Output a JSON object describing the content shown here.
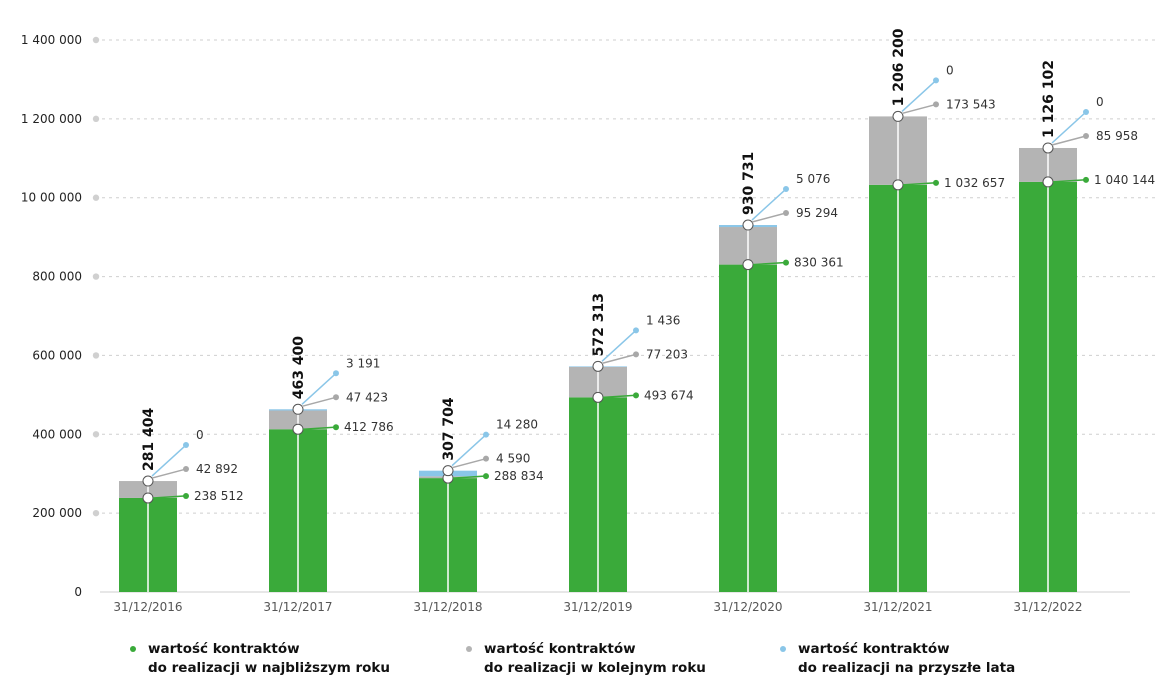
{
  "chart_data": {
    "type": "bar",
    "stacked": true,
    "categories": [
      "31/12/2016",
      "31/12/2017",
      "31/12/2018",
      "31/12/2019",
      "31/12/2020",
      "31/12/2021",
      "31/12/2022"
    ],
    "totals": [
      "281 404",
      "463 400",
      "307 704",
      "572 313",
      "930 731",
      "1 206 200",
      "1 126 102"
    ],
    "series": [
      {
        "name_lines": [
          "wartość kontraktów",
          "do realizacji w najbliższym roku"
        ],
        "color": "#3aaa3a",
        "values": [
          238512,
          412786,
          288834,
          493674,
          830361,
          1032657,
          1040144
        ],
        "labels": [
          "238 512",
          "412 786",
          "288 834",
          "493 674",
          "830 361",
          "1 032 657",
          "1 040 144"
        ]
      },
      {
        "name_lines": [
          "wartość kontraktów",
          "do realizacji w kolejnym roku"
        ],
        "color": "#b4b4b4",
        "values": [
          42892,
          47423,
          4590,
          77203,
          95294,
          173543,
          85958
        ],
        "labels": [
          "42 892",
          "47 423",
          "4 590",
          "77 203",
          "95 294",
          "173 543",
          "85 958"
        ]
      },
      {
        "name_lines": [
          "wartość kontraktów",
          "do realizacji na przyszłe lata"
        ],
        "color": "#8ac6e8",
        "values": [
          0,
          3191,
          14280,
          1436,
          5076,
          0,
          0
        ],
        "labels": [
          "0",
          "3 191",
          "14 280",
          "1 436",
          "5 076",
          "0",
          "0"
        ]
      }
    ],
    "y_ticks": [
      {
        "value": 0,
        "label": "0"
      },
      {
        "value": 200000,
        "label": "200 000"
      },
      {
        "value": 400000,
        "label": "400 000"
      },
      {
        "value": 600000,
        "label": "600 000"
      },
      {
        "value": 800000,
        "label": "800 000"
      },
      {
        "value": 1000000,
        "label": "10 00 000"
      },
      {
        "value": 1200000,
        "label": "1 200 000"
      },
      {
        "value": 1400000,
        "label": "1 400 000"
      }
    ],
    "ylim": [
      0,
      1400000
    ],
    "grid": true,
    "legend_position": "bottom"
  }
}
